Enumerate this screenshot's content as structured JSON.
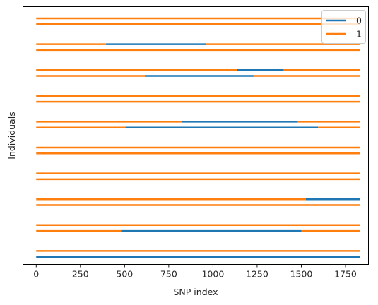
{
  "chart_data": {
    "type": "line",
    "xlabel": "SNP index",
    "ylabel": "Individuals",
    "xlim": [
      -75,
      1880
    ],
    "xticks": [
      0,
      250,
      500,
      750,
      1000,
      1250,
      1500,
      1750
    ],
    "x_end": 1833,
    "grid": false,
    "legend": {
      "placement": "top-right",
      "entries": [
        "0",
        "1"
      ]
    },
    "colors": {
      "0": "#1f77b4",
      "1": "#ff7f0e"
    },
    "haplotypes": [
      {
        "individual": 1,
        "haplotype": 1,
        "segments": [
          [
            0,
            1833,
            1
          ]
        ]
      },
      {
        "individual": 1,
        "haplotype": 2,
        "segments": [
          [
            0,
            1833,
            1
          ]
        ]
      },
      {
        "individual": 2,
        "haplotype": 1,
        "segments": [
          [
            0,
            395,
            1
          ],
          [
            395,
            960,
            0
          ],
          [
            960,
            1833,
            1
          ]
        ]
      },
      {
        "individual": 2,
        "haplotype": 2,
        "segments": [
          [
            0,
            1833,
            1
          ]
        ]
      },
      {
        "individual": 3,
        "haplotype": 1,
        "segments": [
          [
            0,
            1135,
            1
          ],
          [
            1135,
            1400,
            0
          ],
          [
            1400,
            1833,
            1
          ]
        ]
      },
      {
        "individual": 3,
        "haplotype": 2,
        "segments": [
          [
            0,
            615,
            1
          ],
          [
            615,
            1230,
            0
          ],
          [
            1230,
            1833,
            1
          ]
        ]
      },
      {
        "individual": 4,
        "haplotype": 1,
        "segments": [
          [
            0,
            1833,
            1
          ]
        ]
      },
      {
        "individual": 4,
        "haplotype": 2,
        "segments": [
          [
            0,
            1833,
            1
          ]
        ]
      },
      {
        "individual": 5,
        "haplotype": 1,
        "segments": [
          [
            0,
            825,
            1
          ],
          [
            825,
            1480,
            0
          ],
          [
            1480,
            1833,
            1
          ]
        ]
      },
      {
        "individual": 5,
        "haplotype": 2,
        "segments": [
          [
            0,
            505,
            1
          ],
          [
            505,
            1595,
            0
          ],
          [
            1595,
            1833,
            1
          ]
        ]
      },
      {
        "individual": 6,
        "haplotype": 1,
        "segments": [
          [
            0,
            1833,
            1
          ]
        ]
      },
      {
        "individual": 6,
        "haplotype": 2,
        "segments": [
          [
            0,
            1833,
            1
          ]
        ]
      },
      {
        "individual": 7,
        "haplotype": 1,
        "segments": [
          [
            0,
            1833,
            1
          ]
        ]
      },
      {
        "individual": 7,
        "haplotype": 2,
        "segments": [
          [
            0,
            1833,
            1
          ]
        ]
      },
      {
        "individual": 8,
        "haplotype": 1,
        "segments": [
          [
            0,
            1525,
            1
          ],
          [
            1525,
            1833,
            0
          ]
        ]
      },
      {
        "individual": 8,
        "haplotype": 2,
        "segments": [
          [
            0,
            1833,
            1
          ]
        ]
      },
      {
        "individual": 9,
        "haplotype": 1,
        "segments": [
          [
            0,
            1833,
            1
          ]
        ]
      },
      {
        "individual": 9,
        "haplotype": 2,
        "segments": [
          [
            0,
            480,
            1
          ],
          [
            480,
            1500,
            0
          ],
          [
            1500,
            1833,
            1
          ]
        ]
      },
      {
        "individual": 10,
        "haplotype": 1,
        "segments": [
          [
            0,
            1833,
            1
          ]
        ]
      },
      {
        "individual": 10,
        "haplotype": 2,
        "segments": [
          [
            0,
            1833,
            0
          ]
        ]
      }
    ]
  }
}
